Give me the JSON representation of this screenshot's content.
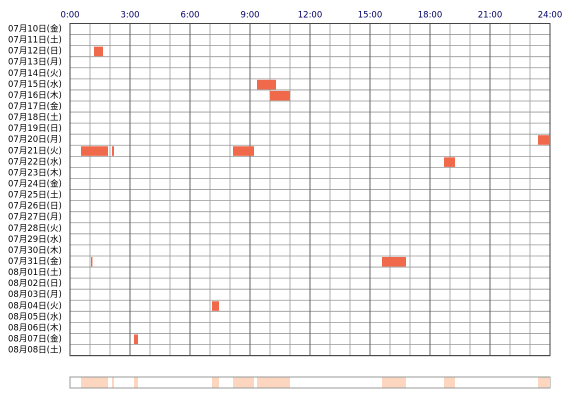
{
  "chart_data": {
    "type": "timeline",
    "xlim": [
      0,
      24
    ],
    "xticks": [
      {
        "value": 0,
        "label": "0:00"
      },
      {
        "value": 3,
        "label": "3:00"
      },
      {
        "value": 6,
        "label": "6:00"
      },
      {
        "value": 9,
        "label": "9:00"
      },
      {
        "value": 12,
        "label": "12:00"
      },
      {
        "value": 15,
        "label": "15:00"
      },
      {
        "value": 18,
        "label": "18:00"
      },
      {
        "value": 21,
        "label": "21:00"
      },
      {
        "value": 24,
        "label": "24:00"
      }
    ],
    "categories": [
      "07月10日(金)",
      "07月11日(土)",
      "07月12日(日)",
      "07月13日(月)",
      "07月14日(火)",
      "07月15日(水)",
      "07月16日(木)",
      "07月17日(金)",
      "07月18日(土)",
      "07月19日(日)",
      "07月20日(月)",
      "07月21日(火)",
      "07月22日(水)",
      "07月23日(木)",
      "07月24日(金)",
      "07月25日(土)",
      "07月26日(日)",
      "07月27日(月)",
      "07月28日(火)",
      "07月29日(水)",
      "07月30日(木)",
      "07月31日(金)",
      "08月01日(土)",
      "08月02日(日)",
      "08月03日(月)",
      "08月04日(火)",
      "08月05日(水)",
      "08月06日(木)",
      "08月07日(金)",
      "08月08日(土)"
    ],
    "values": [
      [],
      [],
      [
        [
          1.2,
          1.65
        ]
      ],
      [],
      [],
      [
        [
          9.35,
          10.3
        ]
      ],
      [
        [
          10.0,
          11.0
        ]
      ],
      [],
      [],
      [],
      [
        [
          23.4,
          24
        ]
      ],
      [
        [
          0.55,
          1.9
        ],
        [
          2.1,
          2.2
        ],
        [
          8.15,
          9.2
        ]
      ],
      [
        [
          18.7,
          19.25
        ]
      ],
      [],
      [],
      [],
      [],
      [],
      [],
      [],
      [],
      [
        [
          1.05,
          1.12
        ],
        [
          15.6,
          16.8
        ]
      ],
      [],
      [],
      [],
      [
        [
          7.1,
          7.45
        ]
      ],
      [],
      [],
      [
        [
          3.2,
          3.4
        ]
      ],
      []
    ],
    "color": "#f0694a",
    "summary_color": "#fdd6c0"
  }
}
